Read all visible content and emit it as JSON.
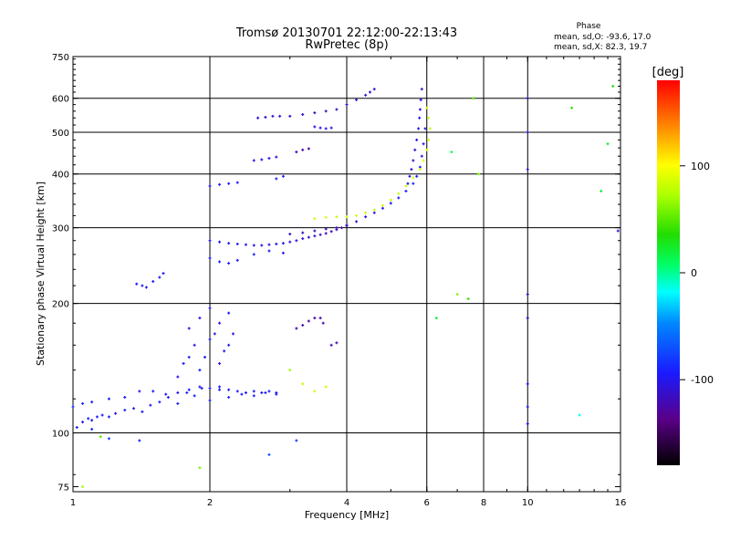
{
  "header": {
    "title_line1": "Tromsø 20130701 22:12:00-22:13:43",
    "title_line2": "RwPretec (8p)"
  },
  "phase_info": {
    "heading": "Phase",
    "line_o": "mean, sd,O: -93.6, 17.0",
    "line_x": "mean, sd,X: 82.3, 19.7"
  },
  "chart_data": {
    "type": "scatter",
    "xlabel": "Frequency [MHz]",
    "ylabel": "Stationary phase Virtual Height [km]",
    "xscale": "log",
    "yscale": "log",
    "xlim": [
      1,
      16
    ],
    "ylim": [
      73,
      750
    ],
    "x_ticks": [
      1,
      2,
      4,
      6,
      8,
      10,
      16
    ],
    "y_ticks": [
      75,
      100,
      200,
      300,
      400,
      500,
      600,
      750
    ],
    "x_gridlines": [
      2,
      4,
      6,
      8,
      10
    ],
    "y_gridlines": [
      100,
      200,
      300,
      400,
      500,
      600
    ],
    "colorbar": {
      "unit": "[deg]",
      "range": [
        -180,
        180
      ],
      "tick_labels": [
        "100",
        "0",
        "-100"
      ],
      "tick_values": [
        100,
        0,
        -100
      ]
    },
    "series": [
      {
        "x": [
          1.02,
          1.05,
          1.08,
          1.1,
          1.13,
          1.16,
          1.2,
          1.24,
          1.3,
          1.36,
          1.42,
          1.48,
          1.55,
          1.62,
          1.7,
          1.78,
          1.85,
          1.92,
          2.0,
          2.1,
          2.2,
          2.35,
          2.5,
          2.65,
          2.8
        ],
        "y": [
          103,
          106,
          108,
          107,
          109,
          110,
          109,
          111,
          113,
          114,
          112,
          116,
          118,
          121,
          117,
          124,
          122,
          127,
          119,
          126,
          121,
          123,
          122,
          124,
          123
        ],
        "phase": [
          -95,
          -100,
          -90,
          -98,
          -92,
          -96,
          -94,
          -100,
          -88,
          -97,
          -93,
          -99,
          -91,
          -95,
          -96,
          -89,
          -94,
          -98,
          -92,
          -96,
          -90,
          -97,
          -93,
          -95,
          -91
        ]
      },
      {
        "x": [
          1.0,
          1.05,
          1.1,
          1.2,
          1.3,
          1.4,
          1.5,
          1.6,
          1.7,
          1.8,
          1.9,
          2.0,
          2.1,
          2.2,
          2.3,
          2.4,
          2.5,
          2.6,
          2.7,
          2.8
        ],
        "y": [
          115,
          117,
          118,
          120,
          121,
          125,
          125,
          123,
          124,
          126,
          128,
          127,
          128,
          126,
          125,
          124,
          125,
          124,
          125,
          124
        ],
        "phase": [
          -85,
          -90,
          -93,
          -96,
          -98,
          -100,
          -95,
          -92,
          -99,
          -94,
          -97,
          -90,
          -93,
          -96,
          -98,
          -95,
          -92,
          -97,
          -94,
          -96
        ]
      },
      {
        "x": [
          1.7,
          1.75,
          1.8,
          1.85,
          1.9,
          1.95,
          2.0,
          2.05,
          2.1,
          2.15,
          2.2,
          1.8,
          1.9,
          2.0,
          2.1,
          2.2,
          2.25
        ],
        "y": [
          135,
          145,
          150,
          160,
          140,
          150,
          165,
          170,
          145,
          155,
          160,
          175,
          185,
          195,
          180,
          190,
          170
        ],
        "phase": [
          -100,
          -95,
          -98,
          -102,
          -96,
          -99,
          -94,
          -97,
          -100,
          -95,
          -98,
          -104,
          -101,
          -99,
          -103,
          -97,
          -100
        ]
      },
      {
        "x": [
          2.0,
          2.1,
          2.2,
          2.3,
          2.4,
          2.5,
          2.6,
          2.7,
          2.8,
          2.9,
          3.0,
          3.1,
          3.2,
          3.3,
          3.4,
          3.5,
          3.6,
          3.7,
          3.8,
          3.9,
          4.0
        ],
        "y": [
          280,
          278,
          276,
          275,
          274,
          273,
          273,
          274,
          275,
          276,
          278,
          280,
          283,
          285,
          287,
          289,
          291,
          294,
          297,
          300,
          303
        ],
        "phase": [
          -100,
          -98,
          -96,
          -98,
          -100,
          -102,
          -101,
          -99,
          -100,
          -102,
          -104,
          -106,
          -108,
          -110,
          -112,
          -115,
          -117,
          -118,
          -120,
          -118,
          -116
        ]
      },
      {
        "x": [
          2.0,
          2.1,
          2.2,
          2.3,
          2.5,
          2.7,
          2.9
        ],
        "y": [
          255,
          250,
          248,
          252,
          260,
          265,
          262
        ],
        "phase": [
          -90,
          -92,
          -94,
          -95,
          -93,
          -96,
          -98
        ]
      },
      {
        "x": [
          3.0,
          3.2,
          3.4,
          3.6,
          3.8,
          4.0,
          4.2,
          4.4,
          4.6,
          4.8,
          5.0,
          5.2,
          5.4,
          5.6,
          5.7,
          5.8,
          5.85,
          5.9,
          5.95
        ],
        "y": [
          290,
          292,
          295,
          298,
          300,
          304,
          310,
          318,
          325,
          333,
          342,
          352,
          365,
          380,
          395,
          415,
          440,
          470,
          510
        ],
        "phase": [
          -112,
          -114,
          -115,
          -117,
          -118,
          -116,
          -112,
          -108,
          -104,
          -100,
          -96,
          -94,
          -92,
          -90,
          -92,
          -94,
          -96,
          -98,
          -100
        ]
      },
      {
        "x": [
          3.4,
          3.6,
          3.8,
          4.0,
          4.2,
          4.4,
          4.6,
          4.8,
          5.0,
          5.2,
          5.4,
          5.6,
          5.8,
          5.9,
          6.0,
          6.05,
          6.1,
          6.05,
          6.0
        ],
        "y": [
          315,
          317,
          318,
          318,
          320,
          325,
          330,
          338,
          348,
          360,
          375,
          392,
          410,
          430,
          455,
          480,
          510,
          540,
          570
        ],
        "phase": [
          80,
          82,
          78,
          85,
          84,
          83,
          80,
          86,
          82,
          78,
          80,
          84,
          82,
          86,
          88,
          84,
          80,
          82,
          86
        ]
      },
      {
        "x": [
          5.45,
          5.5,
          5.55,
          5.6,
          5.65,
          5.7,
          5.75,
          5.78,
          5.8,
          5.82,
          5.85
        ],
        "y": [
          380,
          395,
          410,
          430,
          455,
          480,
          510,
          540,
          565,
          595,
          630
        ],
        "phase": [
          -104,
          -106,
          -108,
          -110,
          -112,
          -108,
          -104,
          -100,
          -102,
          -106,
          -110
        ]
      },
      {
        "x": [
          3.0,
          3.2,
          3.4,
          3.6,
          3.8,
          4.0,
          4.2,
          4.4,
          4.5,
          4.6
        ],
        "y": [
          545,
          550,
          555,
          560,
          565,
          580,
          595,
          610,
          620,
          630
        ],
        "phase": [
          -112,
          -114,
          -116,
          -118,
          -115,
          -112,
          -110,
          -108,
          -110,
          -112
        ]
      },
      {
        "x": [
          2.55,
          2.65,
          2.75,
          2.85
        ],
        "y": [
          540,
          542,
          545,
          545
        ],
        "phase": [
          -110,
          -112,
          -114,
          -112
        ]
      },
      {
        "x": [
          3.4,
          3.5,
          3.6,
          3.7
        ],
        "y": [
          515,
          512,
          510,
          512
        ],
        "phase": [
          -100,
          -102,
          -104,
          -102
        ]
      },
      {
        "x": [
          2.5,
          2.6,
          2.7,
          2.8,
          3.1,
          3.2,
          3.3
        ],
        "y": [
          430,
          432,
          435,
          438,
          450,
          455,
          458
        ],
        "phase": [
          -98,
          -102,
          -104,
          -106,
          -120,
          -124,
          -126
        ]
      },
      {
        "x": [
          2.0,
          2.1,
          2.2,
          2.3,
          2.8,
          2.9
        ],
        "y": [
          375,
          378,
          380,
          382,
          390,
          395
        ],
        "phase": [
          -98,
          -96,
          -94,
          -92,
          -90,
          -92
        ]
      },
      {
        "x": [
          3.0,
          3.2,
          3.4,
          3.6,
          3.7,
          3.8
        ],
        "y": [
          140,
          130,
          125,
          128,
          160,
          162
        ],
        "phase": [
          70,
          80,
          85,
          82,
          -120,
          -122
        ]
      },
      {
        "x": [
          3.1,
          3.2,
          3.3,
          3.4,
          3.5,
          3.55
        ],
        "y": [
          175,
          178,
          182,
          185,
          185,
          180
        ],
        "phase": [
          -120,
          -122,
          -124,
          -126,
          -124,
          -122
        ]
      },
      {
        "x": [
          1.38,
          1.42,
          1.45,
          1.5,
          1.55,
          1.58
        ],
        "y": [
          222,
          220,
          218,
          225,
          230,
          235
        ],
        "phase": [
          -95,
          -98,
          -100,
          -96,
          -94,
          -98
        ]
      },
      {
        "x": [
          10.0,
          10.0,
          10.0,
          10.0,
          10.0,
          10.0,
          10.0,
          10.0
        ],
        "y": [
          600,
          500,
          410,
          210,
          185,
          130,
          115,
          105
        ],
        "phase": [
          -110,
          -104,
          -100,
          -108,
          -112,
          -96,
          -94,
          -98
        ]
      },
      {
        "x": [
          12.5,
          13.0,
          14.5,
          15.0,
          15.4,
          15.8
        ],
        "y": [
          570,
          110,
          365,
          470,
          640,
          295
        ],
        "phase": [
          40,
          -20,
          20,
          20,
          30,
          -100
        ]
      },
      {
        "x": [
          7.0,
          7.4,
          7.6,
          7.8,
          6.3,
          6.8,
          2.7,
          3.1
        ],
        "y": [
          210,
          205,
          600,
          400,
          185,
          450,
          89,
          96
        ],
        "phase": [
          60,
          40,
          50,
          60,
          20,
          10,
          -70,
          -80
        ]
      },
      {
        "x": [
          1.15,
          1.2,
          1.4,
          1.9,
          1.05,
          1.1
        ],
        "y": [
          98,
          97,
          96,
          83,
          75,
          102
        ],
        "phase": [
          50,
          -80,
          -90,
          60,
          70,
          -85
        ]
      }
    ]
  }
}
